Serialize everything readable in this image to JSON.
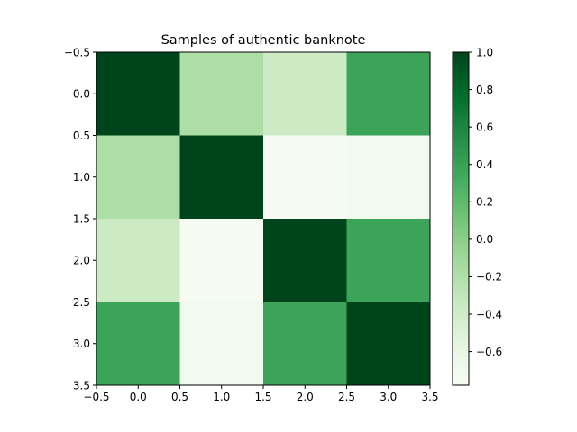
{
  "chart_data": {
    "type": "heatmap",
    "title": "Samples of authentic banknote",
    "xlabel": "",
    "ylabel": "",
    "x_range": [
      -0.5,
      3.5
    ],
    "y_range": [
      -0.5,
      3.5
    ],
    "y_inverted": true,
    "x_ticks": [
      -0.5,
      0.0,
      0.5,
      1.0,
      1.5,
      2.0,
      2.5,
      3.0,
      3.5
    ],
    "y_ticks": [
      -0.5,
      0.0,
      0.5,
      1.0,
      1.5,
      2.0,
      2.5,
      3.0,
      3.5
    ],
    "x_tick_labels": [
      "−0.5",
      "0.0",
      "0.5",
      "1.0",
      "1.5",
      "2.0",
      "2.5",
      "3.0",
      "3.5"
    ],
    "y_tick_labels": [
      "−0.5",
      "0.0",
      "0.5",
      "1.0",
      "1.5",
      "2.0",
      "2.5",
      "3.0",
      "3.5"
    ],
    "matrix": [
      [
        1.0,
        -0.18,
        -0.37,
        0.38
      ],
      [
        -0.18,
        1.0,
        -0.76,
        -0.71
      ],
      [
        -0.37,
        -0.76,
        1.0,
        0.38
      ],
      [
        0.38,
        -0.71,
        0.38,
        1.0
      ]
    ],
    "grid": false,
    "colormap": "Greens",
    "colorbar": {
      "min": -0.78,
      "max": 1.0,
      "ticks": [
        -0.6,
        -0.4,
        -0.2,
        0.0,
        0.2,
        0.4,
        0.6,
        0.8,
        1.0
      ],
      "tick_labels": [
        "−0.6",
        "−0.4",
        "−0.2",
        "0.0",
        "0.2",
        "0.4",
        "0.6",
        "0.8",
        "1.0"
      ]
    }
  }
}
